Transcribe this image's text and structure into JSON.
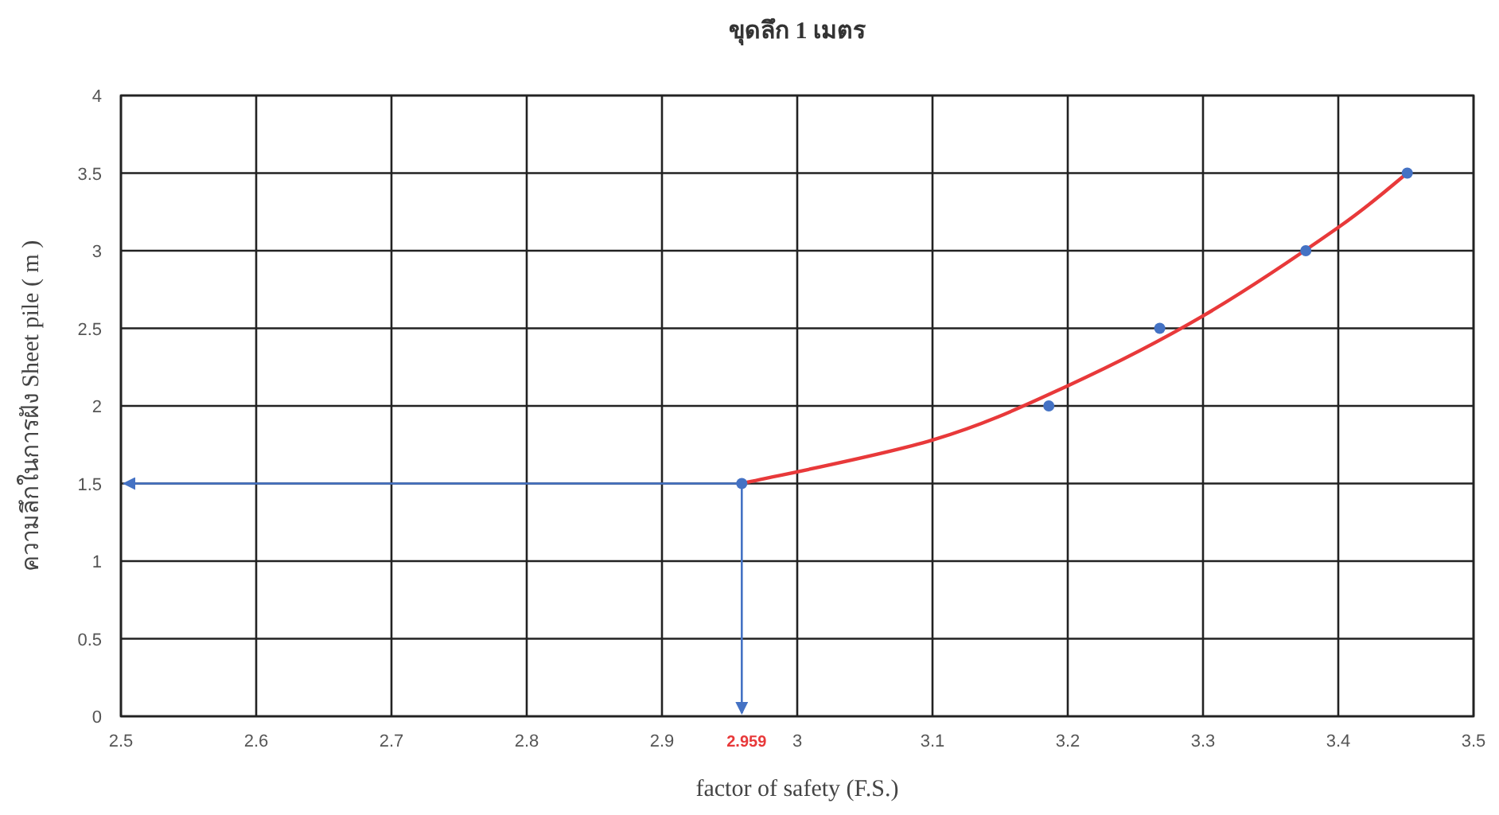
{
  "chart_data": {
    "type": "scatter",
    "title": "ขุดลึก 1 เมตร",
    "xlabel": "factor of safety (F.S.)",
    "ylabel": "ความลึกในการฝัง Sheet pile ( m )",
    "xlim": [
      2.5,
      3.5
    ],
    "xticks": [
      2.5,
      2.6,
      2.7,
      2.8,
      2.9,
      3,
      3.1,
      3.2,
      3.3,
      3.4,
      3.5
    ],
    "ylim": [
      0,
      4
    ],
    "yticks": [
      0,
      0.5,
      1,
      1.5,
      2,
      2.5,
      3,
      3.5,
      4
    ],
    "grid": true,
    "marker": "circle",
    "series": [
      {
        "type": "line",
        "color": "#e8393a",
        "marker": "none",
        "line_style": "solid",
        "x": [
          2.959,
          3.1,
          3.2,
          3.3,
          3.4,
          3.451
        ],
        "values": [
          1.5,
          1.78,
          2.13,
          2.58,
          3.15,
          3.5
        ]
      },
      {
        "color": "#4472c4",
        "x": [
          2.959,
          3.186,
          3.268,
          3.376,
          3.451
        ],
        "values": [
          1.5,
          2.0,
          2.5,
          3.0,
          3.5
        ]
      }
    ],
    "ref_lines": [
      {
        "axis": "x",
        "value": 2.959,
        "label": "2.959",
        "color": "#4472c4"
      },
      {
        "axis": "y",
        "value": 1.5,
        "label": null,
        "color": "#4472c4"
      }
    ]
  }
}
